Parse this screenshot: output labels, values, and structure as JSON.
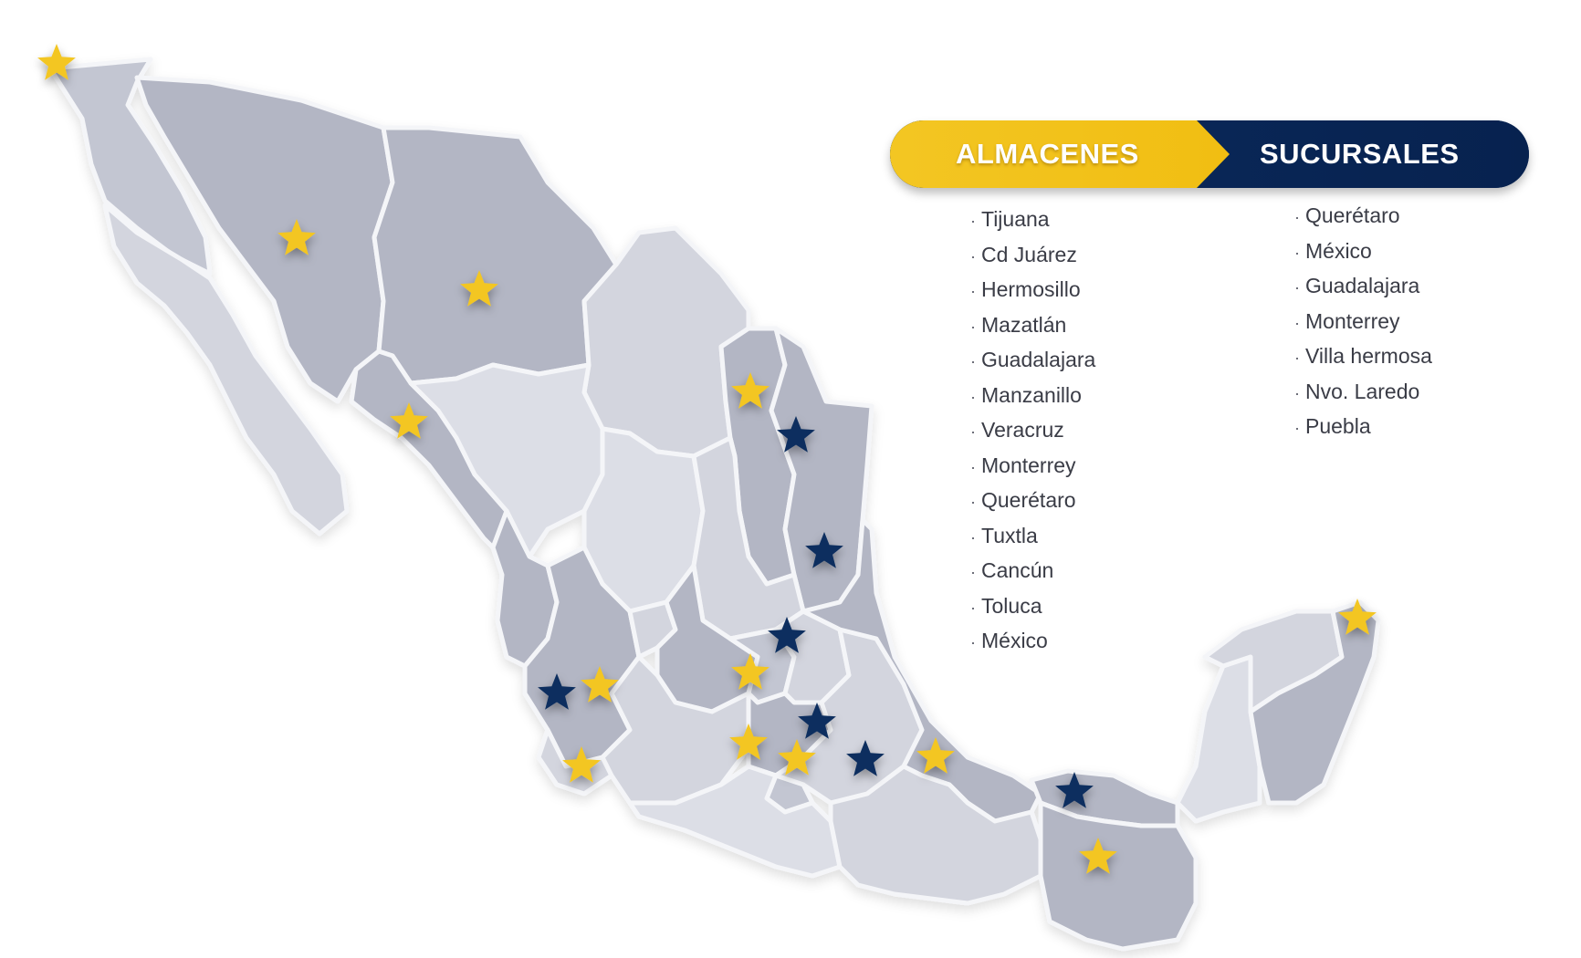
{
  "legend": {
    "almacenes_title": "ALMACENES",
    "sucursales_title": "SUCURSALES",
    "almacenes": [
      "Tijuana",
      "Cd Juárez",
      "Hermosillo",
      "Mazatlán",
      "Guadalajara",
      "Manzanillo",
      "Veracruz",
      "Monterrey",
      "Querétaro",
      "Tuxtla",
      "Cancún",
      "Toluca",
      "México"
    ],
    "sucursales": [
      "Querétaro",
      "México",
      "Guadalajara",
      "Monterrey",
      "Villa hermosa",
      "Nvo. Laredo",
      "Puebla"
    ]
  },
  "colors": {
    "almacen_star": "#f3c623",
    "sucursal_star": "#0d2f5e",
    "banner_yellow": "#f3c623",
    "banner_blue": "#0b2a5d"
  },
  "icons": {
    "almacen_marker": "yellow-star-icon",
    "sucursal_marker": "navy-star-icon"
  }
}
